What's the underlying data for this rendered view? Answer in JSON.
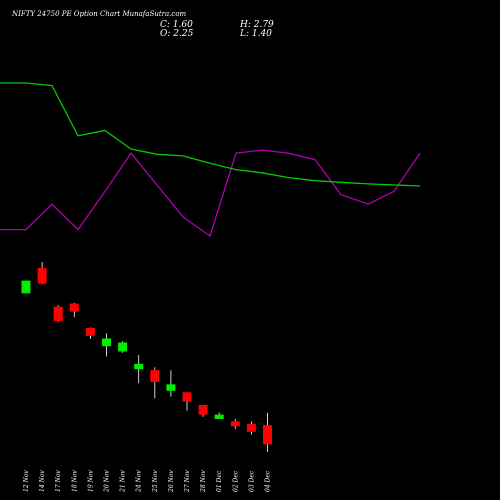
{
  "title": "NIFTY 24750  PE Option  Chart MunafaSutra.com",
  "ohlc": {
    "c": "C: 1.60",
    "o": "O: 2.25",
    "h": "H: 2.79",
    "l": "L: 1.40"
  },
  "colors": {
    "background": "#000000",
    "up": "#00ee00",
    "down": "#ff0000",
    "ma_line": "#00cc00",
    "oscillator_line": "#b000b0"
  },
  "chart_data": {
    "type": "candlestick",
    "categories": [
      "12 Nov",
      "14 Nov",
      "17 Nov",
      "18 Nov",
      "19 Nov",
      "20 Nov",
      "21 Nov",
      "24 Nov",
      "25 Nov",
      "26 Nov",
      "27 Nov",
      "28 Nov",
      "01 Dec",
      "02 Dec",
      "03 Dec",
      "04 Dec"
    ],
    "candles": [
      {
        "open": 22.8,
        "close": 28.5,
        "high": 28.5,
        "low": 22.8
      },
      {
        "open": 35.5,
        "close": 27.0,
        "high": 39.5,
        "low": 26.8
      },
      {
        "open": 18.0,
        "close": 14.0,
        "high": 18.5,
        "low": 13.8
      },
      {
        "open": 19.0,
        "close": 16.5,
        "high": 19.2,
        "low": 15.0
      },
      {
        "open": 12.4,
        "close": 10.8,
        "high": 12.5,
        "low": 10.2
      },
      {
        "open": 9.0,
        "close": 10.3,
        "high": 11.3,
        "low": 7.5
      },
      {
        "open": 8.2,
        "close": 9.6,
        "high": 9.8,
        "low": 8.0
      },
      {
        "open": 6.0,
        "close": 6.6,
        "high": 7.7,
        "low": 4.7
      },
      {
        "open": 5.9,
        "close": 4.8,
        "high": 6.2,
        "low": 3.6
      },
      {
        "open": 4.1,
        "close": 4.6,
        "high": 5.9,
        "low": 3.7
      },
      {
        "open": 4.0,
        "close": 3.4,
        "high": 4.0,
        "low": 2.9
      },
      {
        "open": 3.2,
        "close": 2.7,
        "high": 3.2,
        "low": 2.6
      },
      {
        "open": 2.5,
        "close": 2.7,
        "high": 2.8,
        "low": 2.5
      },
      {
        "open": 2.4,
        "close": 2.2,
        "high": 2.5,
        "low": 2.1
      },
      {
        "open": 2.3,
        "close": 2.0,
        "high": 2.4,
        "low": 1.9
      },
      {
        "open": 2.25,
        "close": 1.6,
        "high": 2.79,
        "low": 1.4
      }
    ],
    "ma_line": [
      35.0,
      35.0,
      34.5,
      25.0,
      26.0,
      22.5,
      21.5,
      21.2,
      19.8,
      18.6,
      18.0,
      17.1,
      16.5,
      16.2,
      15.9,
      15.5
    ],
    "oscillator_line": [
      40,
      40,
      48,
      40,
      52,
      64,
      54,
      44,
      38,
      64,
      65,
      64,
      62,
      51,
      48,
      52,
      64
    ],
    "oscillator_x": [
      0,
      1,
      2,
      3,
      4,
      5,
      6,
      7,
      8,
      9,
      10,
      11,
      12,
      13,
      14,
      15,
      16
    ],
    "ma_x": [
      0,
      1,
      2,
      3,
      4,
      5,
      6,
      7,
      8,
      9,
      10,
      11,
      12,
      13,
      14,
      15
    ],
    "grid": false,
    "legend": "none"
  }
}
